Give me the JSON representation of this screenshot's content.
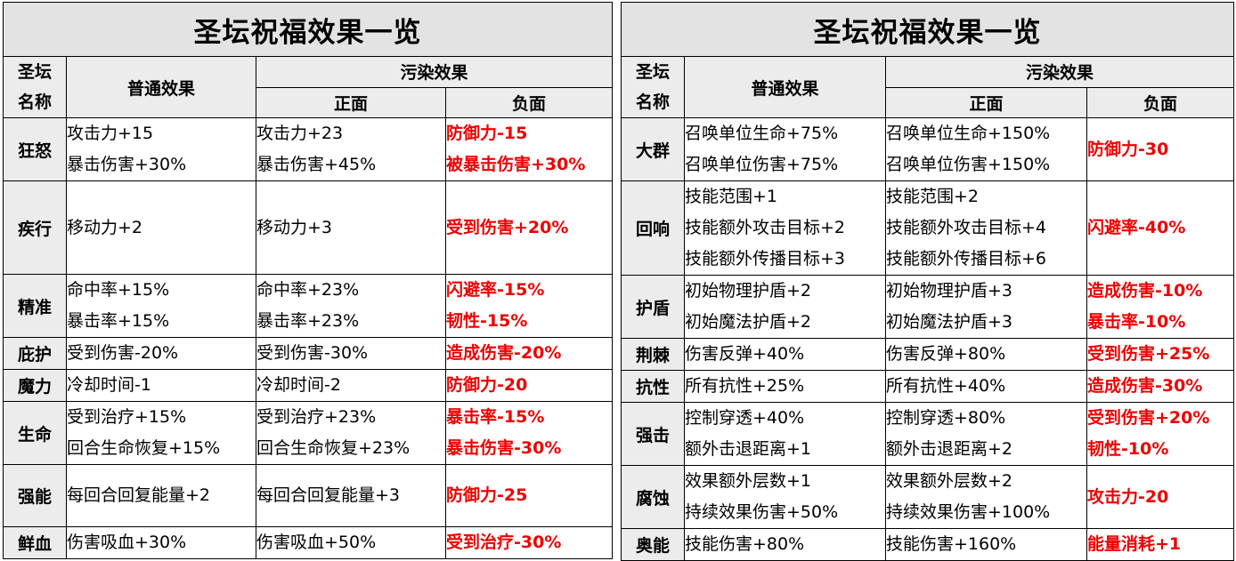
{
  "tables": [
    {
      "title": "圣坛祝福效果一览",
      "headers": {
        "name_line1": "圣坛",
        "name_line2": "名称",
        "normal": "普通效果",
        "polluted": "污染效果",
        "positive": "正面",
        "negative": "负面"
      },
      "rows": [
        {
          "name": "狂怒",
          "normal": [
            "攻击力+15",
            "暴击伤害+30%"
          ],
          "positive": [
            "攻击力+23",
            "暴击伤害+45%"
          ],
          "negative": [
            "防御力-15",
            "被暴击伤害+30%"
          ],
          "height": 70
        },
        {
          "name": "疾行",
          "normal": [
            "移动力+2"
          ],
          "positive": [
            "移动力+3"
          ],
          "negative": [
            "受到伤害+20%"
          ],
          "height": 105
        },
        {
          "name": "精准",
          "normal": [
            "命中率+15%",
            "暴击率+15%"
          ],
          "positive": [
            "命中率+23%",
            "暴击率+23%"
          ],
          "negative": [
            "闪避率-15%",
            "韧性-15%"
          ],
          "height": 70
        },
        {
          "name": "庇护",
          "normal": [
            "受到伤害-20%"
          ],
          "positive": [
            "受到伤害-30%"
          ],
          "negative": [
            "造成伤害-20%"
          ],
          "height": 35
        },
        {
          "name": "魔力",
          "normal": [
            "冷却时间-1"
          ],
          "positive": [
            "冷却时间-2"
          ],
          "negative": [
            "防御力-20"
          ],
          "height": 35
        },
        {
          "name": "生命",
          "normal": [
            "受到治疗+15%",
            "回合生命恢复+15%"
          ],
          "positive": [
            "受到治疗+23%",
            "回合生命恢复+23%"
          ],
          "negative": [
            "暴击率-15%",
            "暴击伤害-30%"
          ],
          "height": 70
        },
        {
          "name": "强能",
          "normal": [
            "每回合回复能量+2"
          ],
          "positive": [
            "每回合回复能量+3"
          ],
          "negative": [
            "防御力-25"
          ],
          "height": 70
        },
        {
          "name": "鲜血",
          "normal": [
            "伤害吸血+30%"
          ],
          "positive": [
            "伤害吸血+50%"
          ],
          "negative": [
            "受到治疗-30%"
          ],
          "height": 35
        }
      ]
    },
    {
      "title": "圣坛祝福效果一览",
      "headers": {
        "name_line1": "圣坛",
        "name_line2": "名称",
        "normal": "普通效果",
        "polluted": "污染效果",
        "positive": "正面",
        "negative": "负面"
      },
      "rows": [
        {
          "name": "大群",
          "normal": [
            "召唤单位生命+75%",
            "召唤单位伤害+75%"
          ],
          "positive": [
            "召唤单位生命+150%",
            "召唤单位伤害+150%"
          ],
          "negative": [
            "防御力-30"
          ],
          "height": 70
        },
        {
          "name": "回响",
          "normal": [
            "技能范围+1",
            "技能额外攻击目标+2",
            "技能额外传播目标+3"
          ],
          "positive": [
            "技能范围+2",
            "技能额外攻击目标+4",
            "技能额外传播目标+6"
          ],
          "negative": [
            "闪避率-40%"
          ],
          "height": 105
        },
        {
          "name": "护盾",
          "normal": [
            "初始物理护盾+2",
            "初始魔法护盾+2"
          ],
          "positive": [
            "初始物理护盾+3",
            "初始魔法护盾+3"
          ],
          "negative": [
            "造成伤害-10%",
            "暴击率-10%"
          ],
          "height": 70
        },
        {
          "name": "荆棘",
          "normal": [
            "伤害反弹+40%"
          ],
          "positive": [
            "伤害反弹+80%"
          ],
          "negative": [
            "受到伤害+25%"
          ],
          "height": 35
        },
        {
          "name": "抗性",
          "normal": [
            "所有抗性+25%"
          ],
          "positive": [
            "所有抗性+40%"
          ],
          "negative": [
            "造成伤害-30%"
          ],
          "height": 35
        },
        {
          "name": "强击",
          "normal": [
            "控制穿透+40%",
            "额外击退距离+1"
          ],
          "positive": [
            "控制穿透+80%",
            "额外击退距离+2"
          ],
          "negative": [
            "受到伤害+20%",
            "韧性-10%"
          ],
          "height": 70
        },
        {
          "name": "腐蚀",
          "normal": [
            "效果额外层数+1",
            "持续效果伤害+50%"
          ],
          "positive": [
            "效果额外层数+2",
            "持续效果伤害+100%"
          ],
          "negative": [
            "攻击力-20"
          ],
          "height": 70
        },
        {
          "name": "奥能",
          "normal": [
            "技能伤害+80%"
          ],
          "positive": [
            "技能伤害+160%"
          ],
          "negative": [
            "能量消耗+1"
          ],
          "height": 35
        }
      ]
    }
  ]
}
